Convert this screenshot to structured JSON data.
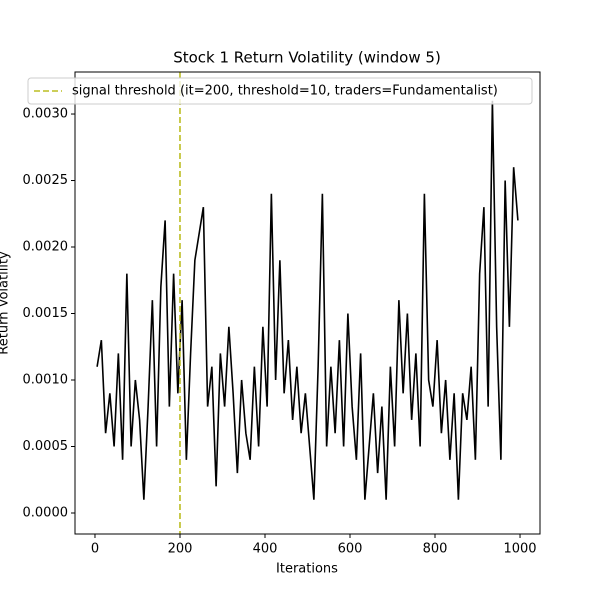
{
  "chart_data": {
    "type": "line",
    "title": "Stock 1 Return Volatility (window 5)",
    "xlabel": "Iterations",
    "ylabel": "Return Volatility",
    "x": [
      5,
      15,
      25,
      35,
      45,
      55,
      65,
      75,
      85,
      95,
      105,
      115,
      125,
      135,
      145,
      155,
      165,
      175,
      185,
      195,
      205,
      215,
      225,
      235,
      245,
      255,
      265,
      275,
      285,
      295,
      305,
      315,
      325,
      335,
      345,
      355,
      365,
      375,
      385,
      395,
      405,
      415,
      425,
      435,
      445,
      455,
      465,
      475,
      485,
      495,
      505,
      515,
      525,
      535,
      545,
      555,
      565,
      575,
      585,
      595,
      605,
      615,
      625,
      635,
      645,
      655,
      665,
      675,
      685,
      695,
      705,
      715,
      725,
      735,
      745,
      755,
      765,
      775,
      785,
      795,
      805,
      815,
      825,
      835,
      845,
      855,
      865,
      875,
      885,
      895,
      905,
      915,
      925,
      935,
      945,
      955,
      965,
      975,
      985,
      995
    ],
    "series": [
      {
        "name": "Stock 1",
        "color": "#000000",
        "values": [
          0.0011,
          0.0013,
          0.0006,
          0.0009,
          0.0005,
          0.0012,
          0.0004,
          0.0018,
          0.0005,
          0.001,
          0.0007,
          0.0001,
          0.0008,
          0.0016,
          0.0005,
          0.0017,
          0.0022,
          0.0008,
          0.0018,
          0.0009,
          0.0016,
          0.0004,
          0.0012,
          0.0019,
          0.0021,
          0.0023,
          0.0008,
          0.0011,
          0.0002,
          0.0012,
          0.0008,
          0.0014,
          0.0009,
          0.0003,
          0.001,
          0.0006,
          0.0004,
          0.0011,
          0.0005,
          0.0014,
          0.0008,
          0.0024,
          0.001,
          0.0019,
          0.0009,
          0.0013,
          0.0007,
          0.0011,
          0.0006,
          0.0009,
          0.0005,
          0.0001,
          0.0011,
          0.0024,
          0.0005,
          0.0011,
          0.0006,
          0.0013,
          0.0005,
          0.0015,
          0.0008,
          0.0004,
          0.0012,
          0.0001,
          0.0005,
          0.0009,
          0.0003,
          0.0008,
          0.0001,
          0.0011,
          0.0005,
          0.0016,
          0.0009,
          0.0015,
          0.0007,
          0.0012,
          0.0005,
          0.0024,
          0.001,
          0.0008,
          0.0013,
          0.0006,
          0.001,
          0.0004,
          0.0009,
          0.0001,
          0.0009,
          0.0007,
          0.0011,
          0.0004,
          0.0018,
          0.0023,
          0.0008,
          0.0031,
          0.0014,
          0.0004,
          0.0025,
          0.0014,
          0.0026,
          0.0022
        ]
      }
    ],
    "threshold": {
      "name": "signal threshold (it=200, threshold=10, traders=Fundamentalist)",
      "x": 200,
      "color": "#bcbd22"
    },
    "xlim": [
      -47,
      1047
    ],
    "ylim": [
      -0.000158,
      0.003316
    ],
    "xticks": [
      0,
      200,
      400,
      600,
      800,
      1000
    ],
    "yticks": [
      {
        "value": 0,
        "label": "0.0000"
      },
      {
        "value": 0.0005,
        "label": "0.0005"
      },
      {
        "value": 0.001,
        "label": "0.0010"
      },
      {
        "value": 0.0015,
        "label": "0.0015"
      },
      {
        "value": 0.002,
        "label": "0.0020"
      },
      {
        "value": 0.0025,
        "label": "0.0025"
      },
      {
        "value": 0.003,
        "label": "0.0030"
      }
    ],
    "legend": "upper left"
  }
}
